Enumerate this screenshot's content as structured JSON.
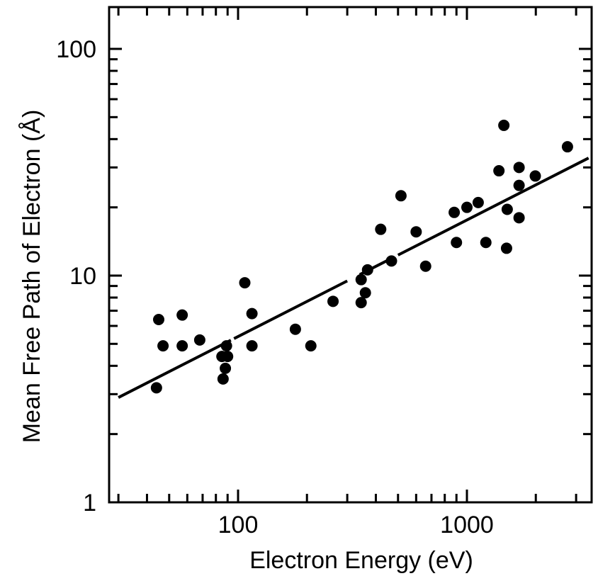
{
  "chart_data": {
    "type": "scatter",
    "title": "",
    "xlabel": "Electron Energy (eV)",
    "ylabel": "Mean Free Path of Electron (Å)",
    "x_scale": "log",
    "y_scale": "log",
    "xlim": [
      25,
      4000
    ],
    "ylim": [
      1,
      180
    ],
    "x_ticks": [
      {
        "value": 100,
        "label": "100"
      },
      {
        "value": 1000,
        "label": "1000"
      }
    ],
    "y_ticks": [
      {
        "value": 1,
        "label": "1"
      },
      {
        "value": 10,
        "label": "10"
      },
      {
        "value": 100,
        "label": "100"
      }
    ],
    "grid": false,
    "legend": "none",
    "colors": {
      "marker": "#000000",
      "line": "#000000",
      "axis": "#000000"
    },
    "series": [
      {
        "kind": "points",
        "points": [
          {
            "x": 44,
            "y": 3.2
          },
          {
            "x": 45,
            "y": 6.4
          },
          {
            "x": 47,
            "y": 4.9
          },
          {
            "x": 57,
            "y": 6.7
          },
          {
            "x": 57,
            "y": 4.9
          },
          {
            "x": 68,
            "y": 5.2
          },
          {
            "x": 85,
            "y": 4.4
          },
          {
            "x": 86,
            "y": 3.5
          },
          {
            "x": 88,
            "y": 3.9
          },
          {
            "x": 89,
            "y": 4.9
          },
          {
            "x": 90,
            "y": 4.4
          },
          {
            "x": 107,
            "y": 9.3
          },
          {
            "x": 115,
            "y": 6.8
          },
          {
            "x": 115,
            "y": 4.9
          },
          {
            "x": 178,
            "y": 5.8
          },
          {
            "x": 208,
            "y": 4.9
          },
          {
            "x": 260,
            "y": 7.7
          },
          {
            "x": 345,
            "y": 9.6
          },
          {
            "x": 345,
            "y": 7.6
          },
          {
            "x": 360,
            "y": 8.4
          },
          {
            "x": 368,
            "y": 10.6
          },
          {
            "x": 420,
            "y": 16.0
          },
          {
            "x": 468,
            "y": 11.6
          },
          {
            "x": 515,
            "y": 22.5
          },
          {
            "x": 600,
            "y": 15.6
          },
          {
            "x": 660,
            "y": 11.0
          },
          {
            "x": 880,
            "y": 19.0
          },
          {
            "x": 900,
            "y": 14.0
          },
          {
            "x": 1000,
            "y": 20.0
          },
          {
            "x": 1120,
            "y": 21.0
          },
          {
            "x": 1210,
            "y": 14.0
          },
          {
            "x": 1380,
            "y": 29.0
          },
          {
            "x": 1450,
            "y": 46.0
          },
          {
            "x": 1490,
            "y": 13.2
          },
          {
            "x": 1500,
            "y": 19.6
          },
          {
            "x": 1690,
            "y": 18.0
          },
          {
            "x": 1690,
            "y": 30.0
          },
          {
            "x": 1690,
            "y": 25.0
          },
          {
            "x": 1990,
            "y": 27.5
          },
          {
            "x": 2750,
            "y": 37.0
          }
        ]
      },
      {
        "kind": "fit-line",
        "points": [
          {
            "x": 30,
            "y": 2.9
          },
          {
            "x": 3400,
            "y": 33.0
          }
        ],
        "gaps": [
          [
            93,
            96
          ],
          [
            300,
            340
          ],
          [
            370,
            385
          ],
          [
            475,
            500
          ]
        ]
      }
    ]
  }
}
